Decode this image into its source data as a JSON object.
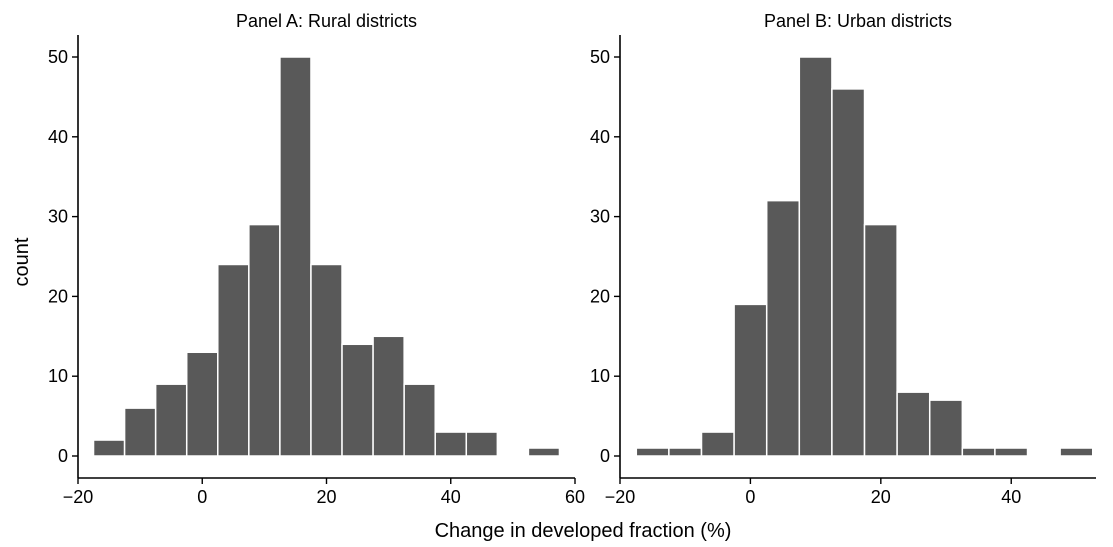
{
  "xlabel": "Change in developed fraction (%)",
  "ylabel": "count",
  "bar_color": "#595959",
  "chart_data": [
    {
      "type": "bar",
      "title": "Panel A: Rural districts",
      "bins": [
        {
          "x0": -17.5,
          "x1": -12.5,
          "count": 2
        },
        {
          "x0": -12.5,
          "x1": -7.5,
          "count": 6
        },
        {
          "x0": -7.5,
          "x1": -2.5,
          "count": 9
        },
        {
          "x0": -2.5,
          "x1": 2.5,
          "count": 13
        },
        {
          "x0": 2.5,
          "x1": 7.5,
          "count": 24
        },
        {
          "x0": 7.5,
          "x1": 12.5,
          "count": 29
        },
        {
          "x0": 12.5,
          "x1": 17.5,
          "count": 50
        },
        {
          "x0": 17.5,
          "x1": 22.5,
          "count": 24
        },
        {
          "x0": 22.5,
          "x1": 27.5,
          "count": 14
        },
        {
          "x0": 27.5,
          "x1": 32.5,
          "count": 15
        },
        {
          "x0": 32.5,
          "x1": 37.5,
          "count": 9
        },
        {
          "x0": 37.5,
          "x1": 42.5,
          "count": 3
        },
        {
          "x0": 42.5,
          "x1": 47.5,
          "count": 3
        },
        {
          "x0": 47.5,
          "x1": 52.5,
          "count": 0
        },
        {
          "x0": 52.5,
          "x1": 57.5,
          "count": 1
        }
      ],
      "xlim": [
        -20,
        60
      ],
      "ylim": [
        0,
        53
      ],
      "xticks": [
        -20,
        0,
        20,
        40,
        60
      ],
      "xtick_labels": [
        "−20",
        "0",
        "20",
        "40",
        "60"
      ],
      "yticks": [
        0,
        10,
        20,
        30,
        40,
        50
      ],
      "ytick_labels": [
        "0",
        "10",
        "20",
        "30",
        "40",
        "50"
      ]
    },
    {
      "type": "bar",
      "title": "Panel B: Urban districts",
      "bins": [
        {
          "x0": -17.5,
          "x1": -12.5,
          "count": 1
        },
        {
          "x0": -12.5,
          "x1": -7.5,
          "count": 1
        },
        {
          "x0": -7.5,
          "x1": -2.5,
          "count": 3
        },
        {
          "x0": -2.5,
          "x1": 2.5,
          "count": 19
        },
        {
          "x0": 2.5,
          "x1": 7.5,
          "count": 32
        },
        {
          "x0": 7.5,
          "x1": 12.5,
          "count": 50
        },
        {
          "x0": 12.5,
          "x1": 17.5,
          "count": 46
        },
        {
          "x0": 17.5,
          "x1": 22.5,
          "count": 29
        },
        {
          "x0": 22.5,
          "x1": 27.5,
          "count": 8
        },
        {
          "x0": 27.5,
          "x1": 32.5,
          "count": 7
        },
        {
          "x0": 32.5,
          "x1": 37.5,
          "count": 1
        },
        {
          "x0": 37.5,
          "x1": 42.5,
          "count": 1
        },
        {
          "x0": 42.5,
          "x1": 47.5,
          "count": 0
        },
        {
          "x0": 47.5,
          "x1": 52.5,
          "count": 1
        }
      ],
      "xlim": [
        -20,
        53
      ],
      "ylim": [
        0,
        53
      ],
      "xticks": [
        -20,
        0,
        20,
        40
      ],
      "xtick_labels": [
        "−20",
        "0",
        "20",
        "40"
      ],
      "yticks": [
        0,
        10,
        20,
        30,
        40,
        50
      ],
      "ytick_labels": [
        "0",
        "10",
        "20",
        "30",
        "40",
        "50"
      ]
    }
  ]
}
